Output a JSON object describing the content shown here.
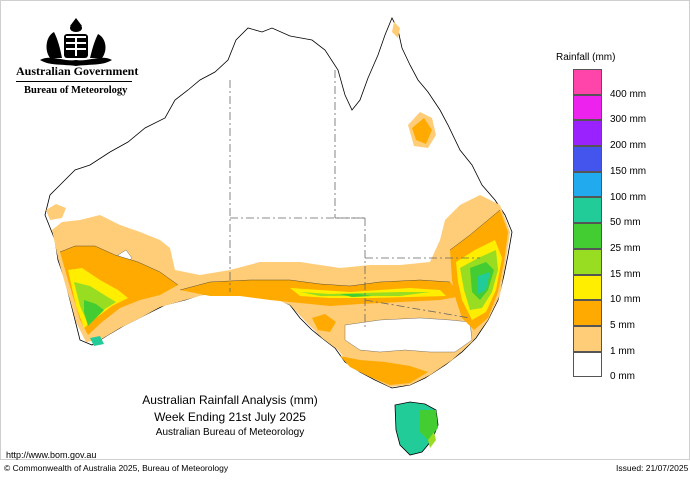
{
  "header": {
    "government": "Australian Government",
    "bureau": "Bureau of Meteorology"
  },
  "legend": {
    "title": "Rainfall (mm)",
    "items": [
      {
        "label": "400 mm",
        "color": "#ff44aa"
      },
      {
        "label": "300 mm",
        "color": "#ee22ee"
      },
      {
        "label": "200 mm",
        "color": "#9a22ff"
      },
      {
        "label": "150 mm",
        "color": "#4455ee"
      },
      {
        "label": "100 mm",
        "color": "#22aaee"
      },
      {
        "label": "50 mm",
        "color": "#22cc99"
      },
      {
        "label": "25 mm",
        "color": "#44cc33"
      },
      {
        "label": "15 mm",
        "color": "#99dd22"
      },
      {
        "label": "10 mm",
        "color": "#ffee00"
      },
      {
        "label": "5 mm",
        "color": "#ffaa00"
      },
      {
        "label": "1 mm",
        "color": "#ffcc77"
      },
      {
        "label": "0 mm",
        "color": "#ffffff"
      }
    ]
  },
  "caption": {
    "line1": "Australian Rainfall Analysis (mm)",
    "line2": "Week Ending 21st July 2025",
    "line3": "Australian Bureau of Meteorology"
  },
  "footer": {
    "url": "http://www.bom.gov.au",
    "copyright": "© Commonwealth of Australia 2025, Bureau of Meteorology",
    "issued": "Issued: 21/07/2025"
  }
}
